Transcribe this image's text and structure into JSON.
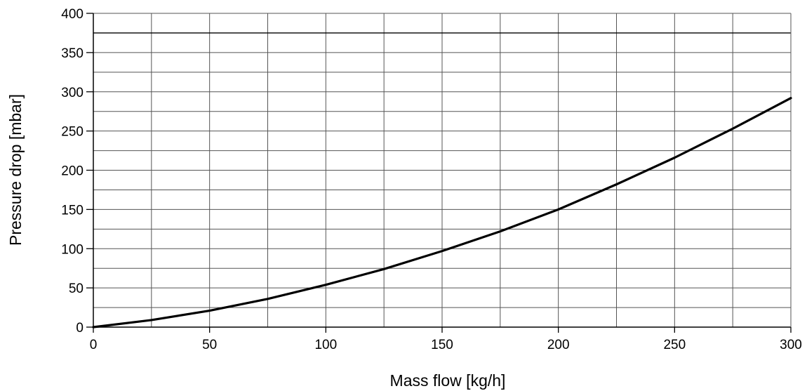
{
  "chart_data": {
    "type": "line",
    "title": "",
    "xlabel": "Mass flow [kg/h]",
    "ylabel": "Pressure drop [mbar]",
    "xlim": [
      0,
      300
    ],
    "ylim": [
      0,
      400
    ],
    "x_major_ticks": [
      0,
      50,
      100,
      150,
      200,
      250,
      300
    ],
    "x_minor_step": 25,
    "y_major_ticks": [
      0,
      50,
      100,
      150,
      200,
      250,
      300,
      350,
      400
    ],
    "y_minor_step": 25,
    "grid": true,
    "reference_line_y": 375,
    "series": [
      {
        "color": "#000000",
        "x": [
          0,
          25,
          50,
          75,
          100,
          125,
          150,
          175,
          200,
          225,
          250,
          275,
          300
        ],
        "y": [
          0,
          9,
          21,
          36,
          54,
          74,
          97,
          122,
          150,
          182,
          216,
          253,
          292
        ]
      }
    ]
  }
}
